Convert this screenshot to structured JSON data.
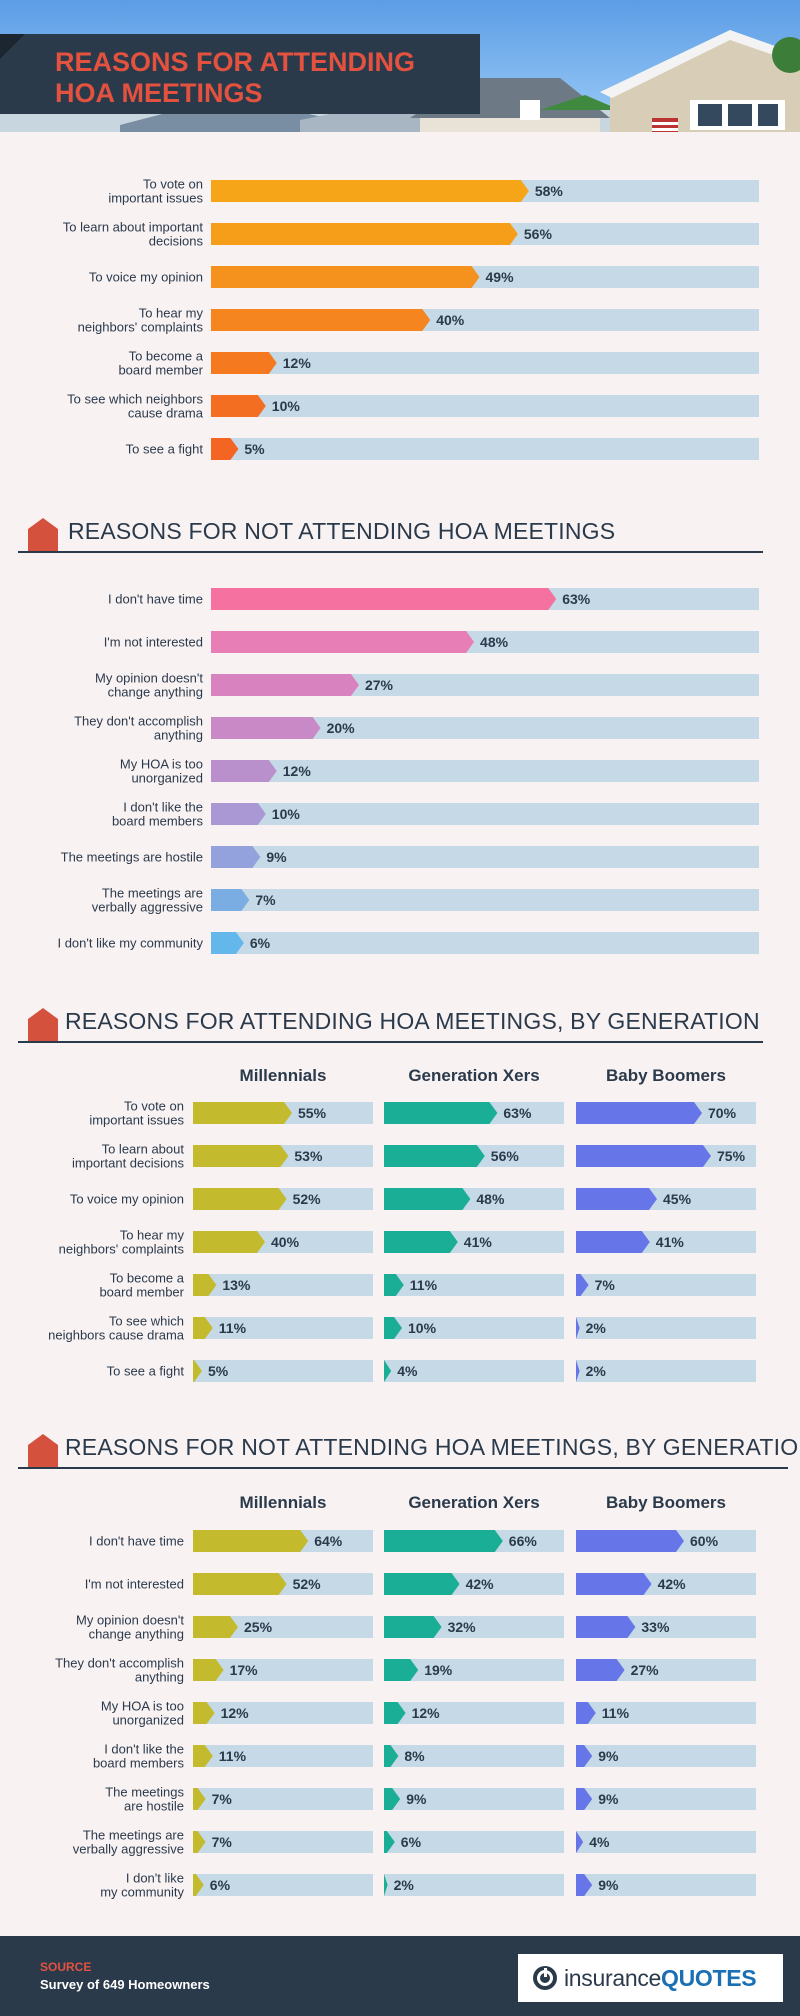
{
  "title_line1": "REASONS FOR ATTENDING",
  "title_line2": "HOA MEETINGS",
  "sections": {
    "not_attending": "REASONS FOR NOT ATTENDING HOA MEETINGS",
    "attending_gen": "REASONS FOR ATTENDING HOA MEETINGS, BY GENERATION",
    "not_attending_gen": "REASONS FOR NOT ATTENDING HOA MEETINGS, BY GENERATION"
  },
  "generations": [
    "Millennials",
    "Generation Xers",
    "Baby Boomers"
  ],
  "colors": {
    "track": "#c5d9e6",
    "text_dark": "#2b3a4b",
    "millennials": "#c3bb2d",
    "genx": "#1aae96",
    "boomers": "#6676e8",
    "accent": "#e3513f"
  },
  "source": {
    "label": "SOURCE",
    "text": "Survey of 649 Homeowners"
  },
  "logo": {
    "part1": "insurance",
    "part2": "QUOTES"
  },
  "chart_data": [
    {
      "type": "bar",
      "title": "REASONS FOR ATTENDING HOA MEETINGS",
      "categories": [
        [
          "To vote on",
          "important issues"
        ],
        [
          "To learn about important",
          "decisions"
        ],
        [
          "To voice my opinion"
        ],
        [
          "To hear my",
          "neighbors' complaints"
        ],
        [
          "To become a",
          "board member"
        ],
        [
          "To see which neighbors",
          "cause drama"
        ],
        [
          "To see a fight"
        ]
      ],
      "values": [
        58,
        56,
        49,
        40,
        12,
        10,
        5
      ],
      "bar_colors": [
        "#f6a418",
        "#f69d1a",
        "#f5921d",
        "#f5851e",
        "#f5791f",
        "#f46e22",
        "#f46524"
      ],
      "xlim": [
        0,
        100
      ]
    },
    {
      "type": "bar",
      "title": "REASONS FOR NOT ATTENDING HOA MEETINGS",
      "categories": [
        [
          "I don't have time"
        ],
        [
          "I'm not interested"
        ],
        [
          "My opinion doesn't",
          "change anything"
        ],
        [
          "They don't accomplish",
          "anything"
        ],
        [
          "My HOA is too",
          "unorganized"
        ],
        [
          "I don't like the",
          "board members"
        ],
        [
          "The meetings are hostile"
        ],
        [
          "The meetings are",
          "verbally aggressive"
        ],
        [
          "I don't like my community"
        ]
      ],
      "values": [
        63,
        48,
        27,
        20,
        12,
        10,
        9,
        7,
        6
      ],
      "bar_colors": [
        "#f5719f",
        "#e77eb6",
        "#d883c0",
        "#c988c6",
        "#b98fcc",
        "#a998d3",
        "#93a2dc",
        "#7aaee3",
        "#64b7ea"
      ],
      "xlim": [
        0,
        100
      ]
    },
    {
      "type": "bar",
      "title": "REASONS FOR ATTENDING HOA MEETINGS, BY GENERATION",
      "categories": [
        [
          "To vote on",
          "important issues"
        ],
        [
          "To learn about",
          "important decisions"
        ],
        [
          "To voice my opinion"
        ],
        [
          "To hear my",
          "neighbors' complaints"
        ],
        [
          "To become a",
          "board member"
        ],
        [
          "To see which",
          "neighbors cause drama"
        ],
        [
          "To see a fight"
        ]
      ],
      "series": [
        {
          "name": "Millennials",
          "values": [
            55,
            53,
            52,
            40,
            13,
            11,
            5
          ]
        },
        {
          "name": "Generation Xers",
          "values": [
            63,
            56,
            48,
            41,
            11,
            10,
            4
          ]
        },
        {
          "name": "Baby Boomers",
          "values": [
            70,
            75,
            45,
            41,
            7,
            2,
            2
          ]
        }
      ],
      "xlim": [
        0,
        100
      ]
    },
    {
      "type": "bar",
      "title": "REASONS FOR NOT ATTENDING HOA MEETINGS, BY GENERATION",
      "categories": [
        [
          "I don't have time"
        ],
        [
          "I'm not interested"
        ],
        [
          "My opinion doesn't",
          "change anything"
        ],
        [
          "They don't accomplish",
          "anything"
        ],
        [
          "My HOA is too",
          "unorganized"
        ],
        [
          "I don't like the",
          "board members"
        ],
        [
          "The meetings",
          "are hostile"
        ],
        [
          "The meetings are",
          "verbally aggressive"
        ],
        [
          "I don't like",
          "my community"
        ]
      ],
      "series": [
        {
          "name": "Millennials",
          "values": [
            64,
            52,
            25,
            17,
            12,
            11,
            7,
            7,
            6
          ]
        },
        {
          "name": "Generation Xers",
          "values": [
            66,
            42,
            32,
            19,
            12,
            8,
            9,
            6,
            2
          ]
        },
        {
          "name": "Baby Boomers",
          "values": [
            60,
            42,
            33,
            27,
            11,
            9,
            9,
            4,
            9
          ]
        }
      ],
      "xlim": [
        0,
        100
      ]
    }
  ]
}
